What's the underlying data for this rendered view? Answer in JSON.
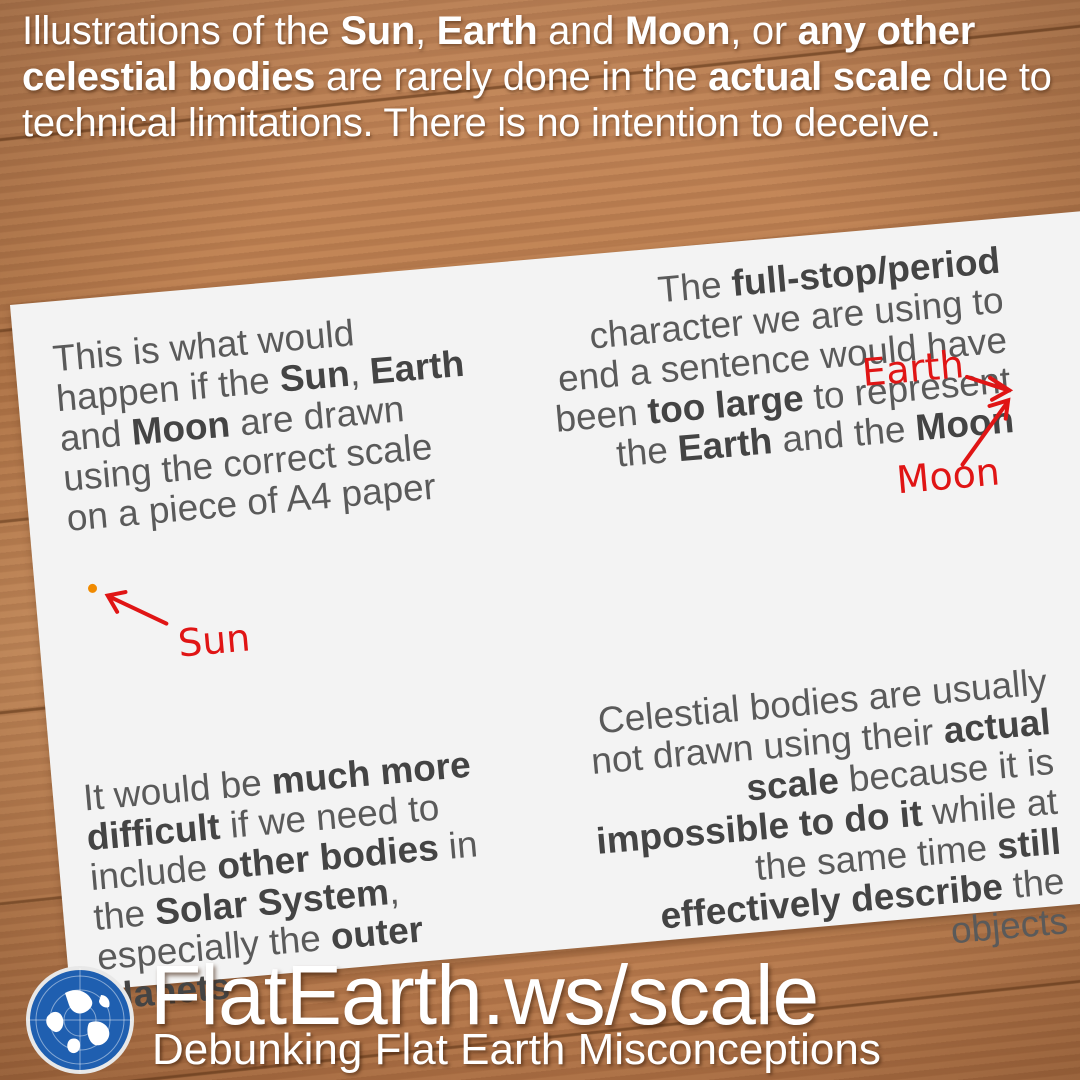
{
  "intro": {
    "parts": [
      {
        "text": "Illustrations of the ",
        "bold": false
      },
      {
        "text": "Sun",
        "bold": true
      },
      {
        "text": ", ",
        "bold": false
      },
      {
        "text": "Earth",
        "bold": true
      },
      {
        "text": " and ",
        "bold": false
      },
      {
        "text": "Moon",
        "bold": true
      },
      {
        "text": ", or ",
        "bold": false
      },
      {
        "text": "any other celestial bodies",
        "bold": true
      },
      {
        "text": " are rarely done in the ",
        "bold": false
      },
      {
        "text": "actual scale",
        "bold": true
      },
      {
        "text": " due to technical limitations. There is no intention to deceive.",
        "bold": false
      }
    ]
  },
  "paper": {
    "top_left": [
      {
        "text": "This is what would happen if the ",
        "bold": false
      },
      {
        "text": "Sun",
        "bold": true
      },
      {
        "text": ", ",
        "bold": false
      },
      {
        "text": "Earth",
        "bold": true
      },
      {
        "text": " and ",
        "bold": false
      },
      {
        "text": "Moon",
        "bold": true
      },
      {
        "text": " are drawn using the correct scale on a piece of A4 paper",
        "bold": false
      }
    ],
    "top_right": [
      {
        "text": "The ",
        "bold": false
      },
      {
        "text": "full-stop/period",
        "bold": true
      },
      {
        "text": " character we are using to end a sentence would have been ",
        "bold": false
      },
      {
        "text": "too large",
        "bold": true
      },
      {
        "text": " to represent the ",
        "bold": false
      },
      {
        "text": "Earth",
        "bold": true
      },
      {
        "text": " and the ",
        "bold": false
      },
      {
        "text": "Moon",
        "bold": true
      }
    ],
    "bottom_left": [
      {
        "text": "It would be ",
        "bold": false
      },
      {
        "text": "much more difficult",
        "bold": true
      },
      {
        "text": " if we need to include ",
        "bold": false
      },
      {
        "text": "other bodies",
        "bold": true
      },
      {
        "text": " in the ",
        "bold": false
      },
      {
        "text": "Solar System",
        "bold": true
      },
      {
        "text": ", especially the ",
        "bold": false
      },
      {
        "text": "outer planets",
        "bold": true
      }
    ],
    "bottom_right": [
      {
        "text": "Celestial bodies are usually not drawn using their ",
        "bold": false
      },
      {
        "text": "actual scale",
        "bold": true
      },
      {
        "text": " because it is ",
        "bold": false
      },
      {
        "text": "impossible to do it",
        "bold": true
      },
      {
        "text": " while at the same time ",
        "bold": false
      },
      {
        "text": "still effectively describe",
        "bold": true
      },
      {
        "text": " the objects",
        "bold": false
      }
    ],
    "labels": {
      "sun": "Sun",
      "earth": "Earth",
      "moon": "Moon"
    }
  },
  "footer": {
    "title": "FlatEarth.ws/scale",
    "subtitle": "Debunking Flat Earth Misconceptions"
  },
  "colors": {
    "label_red": "#e01515",
    "sun_dot": "#f08a00",
    "text_gray": "#5a5a5a"
  },
  "icons": {
    "logo": "globe-icon"
  }
}
